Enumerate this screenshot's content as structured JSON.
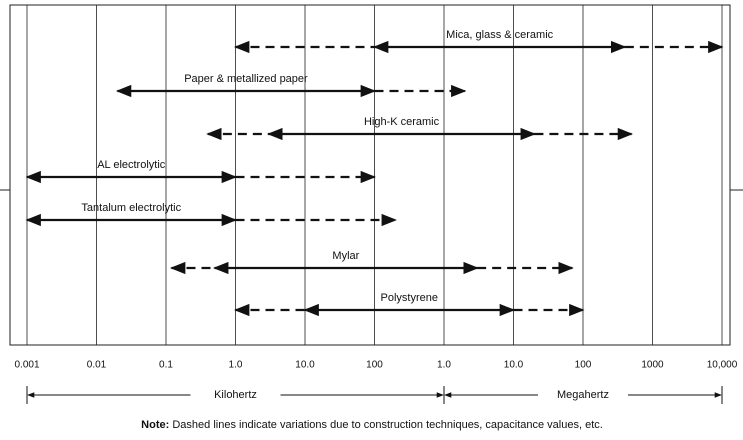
{
  "chart_data": {
    "type": "range",
    "xscale": "log",
    "xlim": [
      0.001,
      10000000
    ],
    "xticks": [
      0.001,
      0.01,
      0.1,
      {
        "value": 1,
        "label": "1.0"
      },
      {
        "value": 10,
        "label": "10.0"
      },
      100,
      {
        "value": 1000,
        "label": "1.0"
      },
      {
        "value": 10000,
        "label": "10.0"
      },
      {
        "value": 100000,
        "label": "100"
      },
      {
        "value": 1000000,
        "label": "1000"
      },
      {
        "value": 10000000,
        "label": "10,000"
      }
    ],
    "grid": true,
    "color": "#111111",
    "series": [
      {
        "name": "Mica, glass & ceramic",
        "segments": [
          {
            "style": "dashed",
            "range": [
              1,
              100
            ]
          },
          {
            "style": "solid",
            "range": [
              100,
              400000
            ]
          },
          {
            "style": "dashed",
            "range": [
              400000,
              10000000
            ]
          }
        ]
      },
      {
        "name": "Paper & metallized paper",
        "segments": [
          {
            "style": "solid",
            "range": [
              0.02,
              100
            ]
          },
          {
            "style": "dashed",
            "range": [
              100,
              2000
            ]
          }
        ]
      },
      {
        "name": "High-K ceramic",
        "segments": [
          {
            "style": "dashed",
            "range": [
              0.4,
              3
            ]
          },
          {
            "style": "solid",
            "range": [
              3,
              20000
            ]
          },
          {
            "style": "dashed",
            "range": [
              20000,
              500000
            ]
          }
        ]
      },
      {
        "name": "AL electrolytic",
        "segments": [
          {
            "style": "solid",
            "range": [
              0.001,
              1
            ]
          },
          {
            "style": "dashed",
            "range": [
              1,
              100
            ]
          }
        ]
      },
      {
        "name": "Tantalum electrolytic",
        "segments": [
          {
            "style": "solid",
            "range": [
              0.001,
              1
            ]
          },
          {
            "style": "dashed",
            "range": [
              1,
              200
            ]
          }
        ]
      },
      {
        "name": "Mylar",
        "segments": [
          {
            "style": "dashed",
            "range": [
              0.12,
              0.5
            ]
          },
          {
            "style": "solid",
            "range": [
              0.5,
              3000
            ]
          },
          {
            "style": "dashed",
            "range": [
              3000,
              70000
            ]
          }
        ]
      },
      {
        "name": "Polystyrene",
        "segments": [
          {
            "style": "dashed",
            "range": [
              1,
              10
            ]
          },
          {
            "style": "solid",
            "range": [
              10,
              10000
            ]
          },
          {
            "style": "dashed",
            "range": [
              10000,
              100000
            ]
          }
        ]
      }
    ],
    "unit_spans": [
      {
        "label": "Kilohertz",
        "range": [
          0.001,
          1000
        ]
      },
      {
        "label": "Megahertz",
        "range": [
          1000,
          10000000
        ]
      }
    ],
    "note": {
      "label": "Note:",
      "text": "Dashed lines indicate variations due to construction techniques, capacitance values, etc."
    }
  }
}
